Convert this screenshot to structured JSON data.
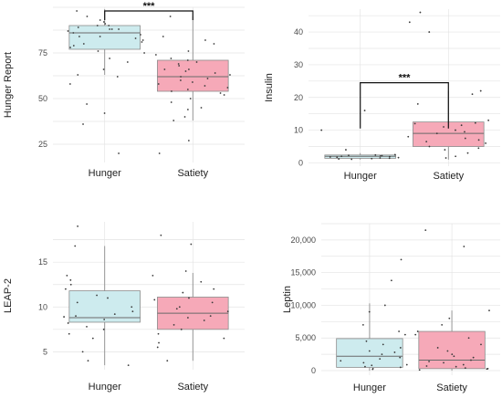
{
  "colors": {
    "hunger": "#cdebee",
    "satiety": "#f6a9b8",
    "box_stroke": "#8c8c8c",
    "grid": "#e4e4e4",
    "point": "#3a3a3a"
  },
  "chart_data": [
    {
      "type": "box",
      "ylabel": "Hunger Report",
      "categories": [
        "Hunger",
        "Satiety"
      ],
      "ylim": [
        15,
        100
      ],
      "yticks": [
        25,
        50,
        75
      ],
      "ytick_labels": [
        "25",
        "50",
        "75"
      ],
      "boxes": [
        {
          "name": "Hunger",
          "min": 63,
          "q1": 77,
          "median": 86,
          "q3": 90,
          "max": 99
        },
        {
          "name": "Satiety",
          "min": 38,
          "q1": 54,
          "median": 62,
          "q3": 71,
          "max": 95
        }
      ],
      "points": [
        [
          92,
          88,
          86,
          80,
          84,
          91,
          78,
          83,
          88,
          90,
          95,
          70,
          62,
          58,
          42,
          36,
          20,
          98,
          72,
          66,
          89,
          87,
          85,
          82,
          79,
          93,
          81,
          84,
          76,
          90,
          88,
          47,
          63,
          75
        ],
        [
          76,
          72,
          70,
          68,
          66,
          64,
          62,
          60,
          58,
          56,
          54,
          52,
          50,
          48,
          45,
          40,
          80,
          82,
          84,
          95,
          27,
          20,
          74,
          65,
          61,
          57,
          63,
          69,
          71,
          59,
          55,
          53,
          66,
          44,
          38
        ]
      ],
      "significance": {
        "label": "***",
        "from": "Hunger",
        "to": "Satiety",
        "y": 98,
        "drop": 5
      }
    },
    {
      "type": "box",
      "ylabel": "Insulin",
      "categories": [
        "Hunger",
        "Satiety"
      ],
      "ylim": [
        -1,
        47
      ],
      "yticks": [
        0,
        10,
        20,
        30,
        40
      ],
      "ytick_labels": [
        "0",
        "10",
        "20",
        "30",
        "40"
      ],
      "boxes": [
        {
          "name": "Hunger",
          "min": 1,
          "q1": 1.4,
          "median": 2,
          "q3": 2.4,
          "max": 3
        },
        {
          "name": "Satiety",
          "min": 1,
          "q1": 5,
          "median": 9,
          "q3": 12.5,
          "max": 22
        }
      ],
      "points": [
        [
          1.2,
          1.5,
          1.8,
          2.0,
          2.2,
          1.4,
          1.6,
          2.5,
          1.9,
          2.1,
          1.3,
          16,
          10,
          4,
          2.3,
          1.7,
          1.1,
          2.4
        ],
        [
          3,
          5,
          6,
          8,
          9,
          10,
          11,
          12,
          13,
          4,
          7,
          2,
          1.5,
          18,
          21,
          22,
          40,
          43,
          46,
          7.5,
          9.5,
          11.5,
          4.5,
          6.5,
          12.2
        ]
      ],
      "significance": {
        "label": "***",
        "from": "Hunger",
        "to": "Satiety",
        "y": 24.5,
        "drop": 14
      }
    },
    {
      "type": "box",
      "ylabel": "LEAP-2",
      "categories": [
        "Hunger",
        "Satiety"
      ],
      "ylim": [
        3,
        19.5
      ],
      "yticks": [
        5,
        10,
        15
      ],
      "ytick_labels": [
        "5",
        "10",
        "15"
      ],
      "boxes": [
        {
          "name": "Hunger",
          "min": 3.5,
          "q1": 8.3,
          "median": 8.8,
          "q3": 11.8,
          "max": 16.8
        },
        {
          "name": "Satiety",
          "min": 4,
          "q1": 7.5,
          "median": 9.3,
          "q3": 11.1,
          "max": 13.8
        }
      ],
      "points": [
        [
          19,
          13.5,
          13,
          12,
          11,
          10,
          9.5,
          9,
          8.6,
          8.2,
          7.8,
          7.5,
          7,
          6.5,
          5,
          4,
          3.5,
          16.8,
          10.5,
          8.9,
          9.2,
          12.5,
          11.3
        ],
        [
          18,
          17,
          14,
          13.5,
          12,
          11,
          10.5,
          10,
          9.5,
          9,
          8.5,
          8,
          7.5,
          7,
          6.5,
          6,
          5.5,
          4,
          9.8,
          10.8,
          12.8,
          8.8,
          11.6
        ]
      ]
    },
    {
      "type": "box",
      "ylabel": "Leptin",
      "categories": [
        "Hunger",
        "Satiety"
      ],
      "ylim": [
        -700,
        22500
      ],
      "yticks": [
        0,
        5000,
        10000,
        15000,
        20000
      ],
      "ytick_labels": [
        "0",
        "5,000",
        "10,000",
        "15,000",
        "20,000"
      ],
      "boxes": [
        {
          "name": "Hunger",
          "min": 0,
          "q1": 500,
          "median": 2200,
          "q3": 4900,
          "max": 10300
        },
        {
          "name": "Satiety",
          "min": 0,
          "q1": 300,
          "median": 1600,
          "q3": 6000,
          "max": 9200
        }
      ],
      "points": [
        [
          200,
          500,
          800,
          1200,
          1500,
          2000,
          2500,
          3000,
          3500,
          4000,
          4500,
          5500,
          6000,
          7000,
          9000,
          10000,
          13800,
          17000,
          300,
          900,
          1800,
          2800,
          600
        ],
        [
          100,
          300,
          600,
          900,
          1200,
          1600,
          2000,
          2500,
          3000,
          4000,
          5000,
          6000,
          7000,
          8000,
          9200,
          19000,
          21500,
          400,
          700,
          1400,
          2200,
          3500,
          5500,
          250
        ]
      ]
    }
  ]
}
